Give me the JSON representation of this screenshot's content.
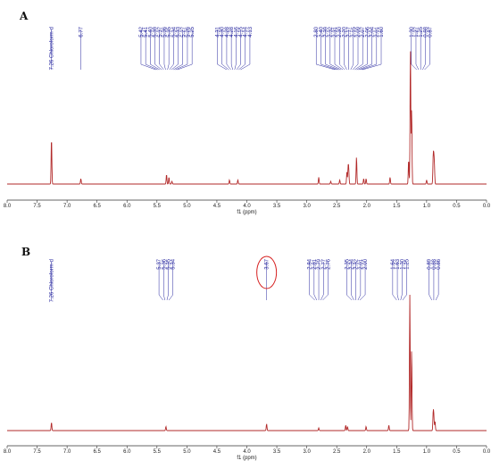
{
  "colors": {
    "spectrum": "#b22a2a",
    "labels": "#2a2aa0",
    "axis": "#333333",
    "highlight": "#d62020"
  },
  "chart_data": [
    {
      "type": "line",
      "panel_label": "A",
      "xlabel": "f1 (ppm)",
      "xlim": [
        8.0,
        0.0
      ],
      "ylim": [
        0,
        1
      ],
      "reversed_x": true,
      "x_ticks": [
        "8.0",
        "7.5",
        "7.0",
        "6.5",
        "6.0",
        "5.5",
        "5.0",
        "4.5",
        "4.0",
        "3.5",
        "3.0",
        "2.5",
        "2.0",
        "1.5",
        "1.0",
        "0.5",
        "0.0"
      ],
      "peaks": [
        {
          "ppm": 7.26,
          "height": 0.34
        },
        {
          "ppm": 6.77,
          "height": 0.04
        },
        {
          "ppm": 5.34,
          "height": 0.07
        },
        {
          "ppm": 5.3,
          "height": 0.05
        },
        {
          "ppm": 5.25,
          "height": 0.02
        },
        {
          "ppm": 4.29,
          "height": 0.03
        },
        {
          "ppm": 4.15,
          "height": 0.03
        },
        {
          "ppm": 2.8,
          "height": 0.05
        },
        {
          "ppm": 2.6,
          "height": 0.02
        },
        {
          "ppm": 2.45,
          "height": 0.03
        },
        {
          "ppm": 2.33,
          "height": 0.09
        },
        {
          "ppm": 2.31,
          "height": 0.11
        },
        {
          "ppm": 2.3,
          "height": 0.1
        },
        {
          "ppm": 2.17,
          "height": 0.2
        },
        {
          "ppm": 2.05,
          "height": 0.04
        },
        {
          "ppm": 2.01,
          "height": 0.04
        },
        {
          "ppm": 1.61,
          "height": 0.05
        },
        {
          "ppm": 1.3,
          "height": 0.18
        },
        {
          "ppm": 1.27,
          "height": 1.0
        },
        {
          "ppm": 1.25,
          "height": 0.55
        },
        {
          "ppm": 1.0,
          "height": 0.03
        },
        {
          "ppm": 0.89,
          "height": 0.18
        },
        {
          "ppm": 0.88,
          "height": 0.16
        },
        {
          "ppm": 0.87,
          "height": 0.12
        }
      ],
      "peak_label_groups": [
        {
          "labels": [
            "7.26 Chloroform-d"
          ],
          "center": 7.26
        },
        {
          "labels": [
            "6.77"
          ],
          "center": 6.77
        },
        {
          "labels": [
            "5.42",
            "5.41",
            "5.40",
            "5.39",
            "5.37",
            "5.36",
            "5.35",
            "5.34",
            "5.33",
            "5.27",
            "5.26",
            "5.25"
          ],
          "center": 5.34
        },
        {
          "labels": [
            "4.31",
            "4.30",
            "4.28",
            "4.28",
            "4.16",
            "4.15",
            "4.14",
            "4.13"
          ],
          "center": 4.22
        },
        {
          "labels": [
            "2.80",
            "2.40",
            "2.39",
            "2.32",
            "2.31",
            "2.30",
            "2.20",
            "2.17",
            "2.15",
            "2.09",
            "2.07",
            "2.06",
            "2.04",
            "2.01",
            "1.60"
          ],
          "center": 2.3
        },
        {
          "labels": [
            "1.30",
            "1.27",
            "1.25",
            "0.88",
            "0.87"
          ],
          "center": 1.1
        }
      ]
    },
    {
      "type": "line",
      "panel_label": "B",
      "xlabel": "f1 (ppm)",
      "xlim": [
        8.0,
        0.0
      ],
      "ylim": [
        0,
        1
      ],
      "reversed_x": true,
      "x_ticks": [
        "8.0",
        "7.5",
        "7.0",
        "6.5",
        "6.0",
        "5.5",
        "5.0",
        "4.5",
        "4.0",
        "3.5",
        "3.0",
        "2.5",
        "2.0",
        "1.5",
        "1.0",
        "0.5",
        "0.0"
      ],
      "peaks": [
        {
          "ppm": 7.26,
          "height": 0.06
        },
        {
          "ppm": 5.35,
          "height": 0.03
        },
        {
          "ppm": 3.67,
          "height": 0.05
        },
        {
          "ppm": 2.8,
          "height": 0.02
        },
        {
          "ppm": 2.35,
          "height": 0.04
        },
        {
          "ppm": 2.32,
          "height": 0.03
        },
        {
          "ppm": 2.01,
          "height": 0.03
        },
        {
          "ppm": 1.63,
          "height": 0.04
        },
        {
          "ppm": 1.28,
          "height": 1.0
        },
        {
          "ppm": 1.25,
          "height": 0.6
        },
        {
          "ppm": 0.89,
          "height": 0.12
        },
        {
          "ppm": 0.88,
          "height": 0.1
        },
        {
          "ppm": 0.86,
          "height": 0.07
        }
      ],
      "peak_label_groups": [
        {
          "labels": [
            "7.26 Chloroform-d"
          ],
          "center": 7.26
        },
        {
          "labels": [
            "5.37",
            "5.36",
            "5.35",
            "5.34"
          ],
          "center": 5.35
        },
        {
          "labels": [
            "3.67"
          ],
          "center": 3.67,
          "highlight": true
        },
        {
          "labels": [
            "2.84",
            "2.81",
            "2.79",
            "2.77",
            "2.76"
          ],
          "center": 2.8
        },
        {
          "labels": [
            "2.35",
            "2.34",
            "2.32",
            "2.01",
            "2.00"
          ],
          "center": 2.18
        },
        {
          "labels": [
            "1.64",
            "1.63",
            "1.30",
            "1.25"
          ],
          "center": 1.45
        },
        {
          "labels": [
            "0.89",
            "0.88",
            "0.86"
          ],
          "center": 0.88
        }
      ]
    }
  ]
}
